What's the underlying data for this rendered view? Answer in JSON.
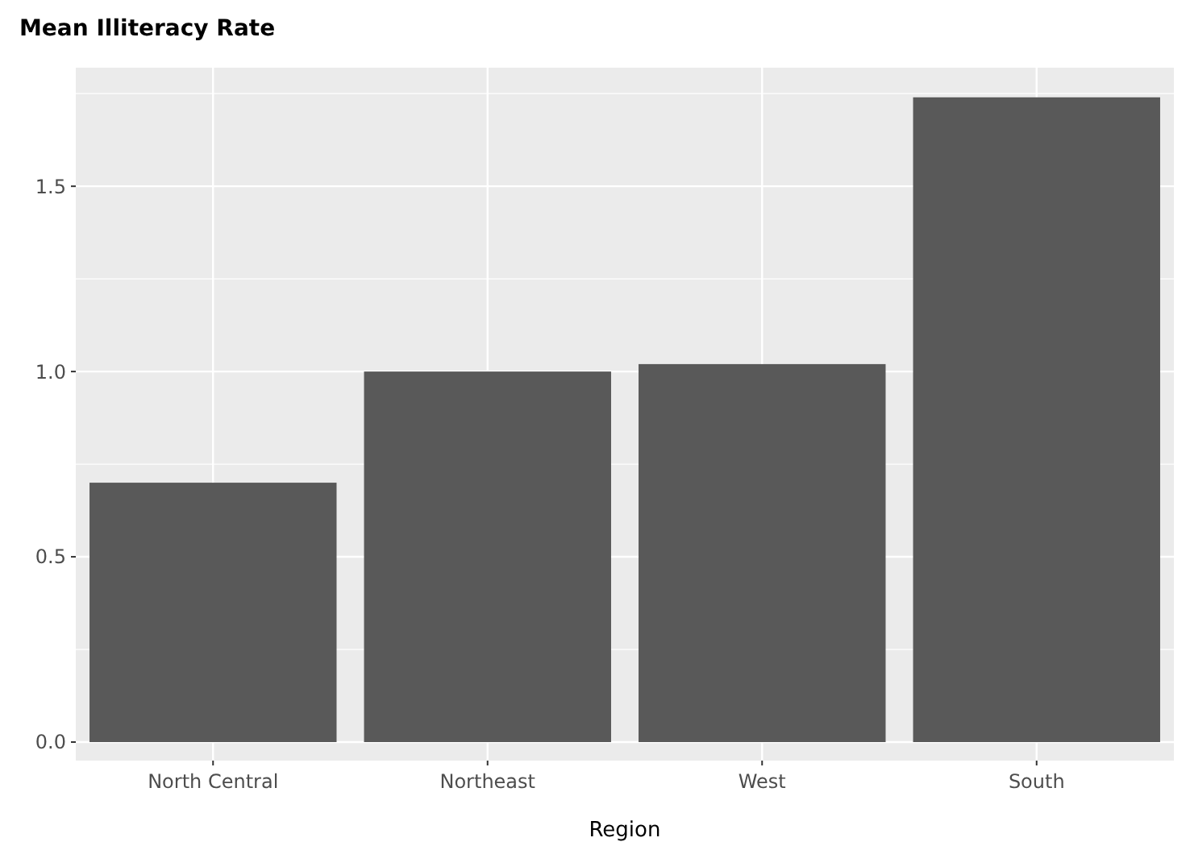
{
  "chart_data": {
    "type": "bar",
    "title": "Mean Illiteracy Rate",
    "xlabel": "Region",
    "categories": [
      "North Central",
      "Northeast",
      "West",
      "South"
    ],
    "values": [
      0.7,
      1.0,
      1.02,
      1.74
    ],
    "color": "#595959",
    "ylim": [
      -0.05,
      1.82
    ],
    "yticks": [
      {
        "value": 0,
        "label": "0.0"
      },
      0.5,
      {
        "value": 1,
        "label": "1.0"
      },
      1.5
    ],
    "grid": true
  }
}
